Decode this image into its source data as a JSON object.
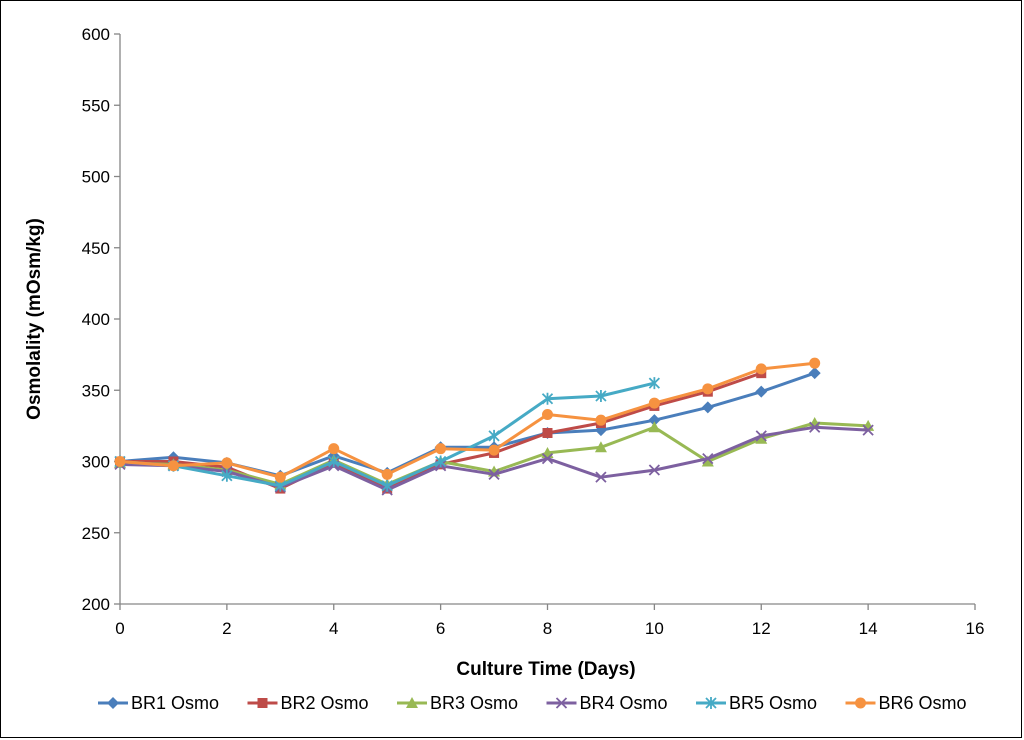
{
  "chart_data": {
    "type": "line",
    "xlabel": "Culture Time (Days)",
    "ylabel": "Osmolality (mOsm/kg)",
    "xlim": [
      0,
      16
    ],
    "ylim": [
      200,
      600
    ],
    "x_ticks": [
      0,
      2,
      4,
      6,
      8,
      10,
      12,
      14,
      16
    ],
    "y_ticks": [
      200,
      250,
      300,
      350,
      400,
      450,
      500,
      550,
      600
    ],
    "grid": false,
    "legend_position": "bottom",
    "series": [
      {
        "name": "BR1 Osmo",
        "color": "#4a7ebb",
        "marker": "diamond",
        "x": [
          0,
          1,
          2,
          3,
          4,
          5,
          6,
          7,
          8,
          9,
          10,
          11,
          12,
          13
        ],
        "y": [
          300,
          303,
          299,
          290,
          304,
          292,
          310,
          310,
          320,
          322,
          329,
          338,
          349,
          362
        ]
      },
      {
        "name": "BR2 Osmo",
        "color": "#be4b48",
        "marker": "square",
        "x": [
          0,
          1,
          2,
          3,
          4,
          5,
          6,
          7,
          8,
          9,
          10,
          11,
          12
        ],
        "y": [
          300,
          300,
          296,
          281,
          299,
          281,
          298,
          306,
          320,
          327,
          339,
          349,
          362
        ]
      },
      {
        "name": "BR3 Osmo",
        "color": "#98b954",
        "marker": "triangle",
        "x": [
          0,
          1,
          2,
          3,
          4,
          5,
          6,
          7,
          8,
          9,
          10,
          11,
          12,
          13,
          14
        ],
        "y": [
          299,
          298,
          294,
          284,
          301,
          284,
          300,
          293,
          306,
          310,
          324,
          300,
          316,
          327,
          325
        ]
      },
      {
        "name": "BR4 Osmo",
        "color": "#7d60a0",
        "marker": "x",
        "x": [
          0,
          1,
          2,
          3,
          4,
          5,
          6,
          7,
          8,
          9,
          10,
          11,
          12,
          13,
          14
        ],
        "y": [
          298,
          297,
          293,
          282,
          297,
          280,
          297,
          291,
          302,
          289,
          294,
          302,
          318,
          324,
          322
        ]
      },
      {
        "name": "BR5 Osmo",
        "color": "#46aac5",
        "marker": "star",
        "x": [
          0,
          1,
          2,
          3,
          4,
          5,
          6,
          7,
          8,
          9,
          10
        ],
        "y": [
          300,
          297,
          290,
          283,
          300,
          283,
          300,
          318,
          344,
          346,
          355
        ]
      },
      {
        "name": "BR6 Osmo",
        "color": "#f69240",
        "marker": "circle",
        "x": [
          0,
          1,
          2,
          3,
          4,
          5,
          6,
          7,
          8,
          9,
          10,
          11,
          12,
          13
        ],
        "y": [
          300,
          297,
          299,
          289,
          309,
          291,
          309,
          308,
          333,
          329,
          341,
          351,
          365,
          369
        ]
      }
    ]
  }
}
